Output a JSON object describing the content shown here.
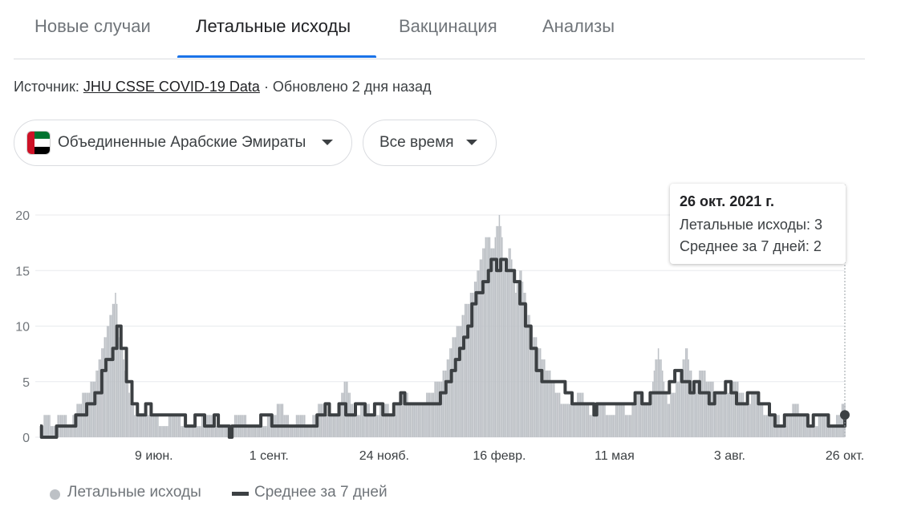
{
  "tabs": [
    {
      "label": "Новые случаи",
      "active": false
    },
    {
      "label": "Летальные исходы",
      "active": true
    },
    {
      "label": "Вакцинация",
      "active": false
    },
    {
      "label": "Анализы",
      "active": false
    }
  ],
  "source": {
    "prefix": "Источник:",
    "link": "JHU CSSE COVID-19 Data",
    "updated": "· Обновлено 2 дня назад"
  },
  "filters": {
    "country": "Объединенные Арабские Эмираты",
    "period": "Все время",
    "country_flag_icon": "uae-flag-icon",
    "dropdown_icon": "caret-down-icon"
  },
  "tooltip": {
    "date": "26 окт. 2021 г.",
    "deaths_label": "Летальные исходы:",
    "deaths_value": "3",
    "avg_label": "Среднее за 7 дней:",
    "avg_value": "2"
  },
  "legend": {
    "bars": "Летальные исходы",
    "line": "Среднее за 7 дней"
  },
  "colors": {
    "bars": "#bdc1c6",
    "line": "#3c4043",
    "grid": "#e8eaed",
    "active_tab": "#1a73e8"
  },
  "chart_data": {
    "type": "bar",
    "title": "",
    "xlabel": "",
    "ylabel": "",
    "ylim": [
      0,
      20
    ],
    "yticks": [
      0,
      5,
      10,
      15,
      20
    ],
    "grid": true,
    "legend_position": "bottom-left",
    "x_range": [
      "2020-03-18",
      "2021-10-26"
    ],
    "x_tick_labels": [
      {
        "label": "9 июн.",
        "date": "2020-06-09"
      },
      {
        "label": "1 сент.",
        "date": "2020-09-01"
      },
      {
        "label": "24 нояб.",
        "date": "2020-11-24"
      },
      {
        "label": "16 февр.",
        "date": "2021-02-16"
      },
      {
        "label": "11 мая",
        "date": "2021-05-11"
      },
      {
        "label": "3 авг.",
        "date": "2021-08-03"
      },
      {
        "label": "26 окт.",
        "date": "2021-10-26"
      }
    ],
    "series": [
      {
        "name": "Летальные исходы",
        "kind": "bar",
        "color": "#bdc1c6",
        "points": [
          [
            "2020-03-18",
            0
          ],
          [
            "2020-03-22",
            2
          ],
          [
            "2020-03-28",
            1
          ],
          [
            "2020-04-03",
            2
          ],
          [
            "2020-04-09",
            1
          ],
          [
            "2020-04-15",
            3
          ],
          [
            "2020-04-21",
            4
          ],
          [
            "2020-04-26",
            5
          ],
          [
            "2020-05-01",
            7
          ],
          [
            "2020-05-05",
            9
          ],
          [
            "2020-05-09",
            11
          ],
          [
            "2020-05-12",
            13
          ],
          [
            "2020-05-15",
            9
          ],
          [
            "2020-05-19",
            6
          ],
          [
            "2020-05-23",
            3
          ],
          [
            "2020-05-28",
            2
          ],
          [
            "2020-06-03",
            2
          ],
          [
            "2020-06-09",
            2
          ],
          [
            "2020-06-16",
            1
          ],
          [
            "2020-06-24",
            2
          ],
          [
            "2020-07-02",
            1
          ],
          [
            "2020-07-10",
            1
          ],
          [
            "2020-07-18",
            2
          ],
          [
            "2020-07-26",
            1
          ],
          [
            "2020-08-03",
            1
          ],
          [
            "2020-08-11",
            2
          ],
          [
            "2020-08-19",
            1
          ],
          [
            "2020-08-27",
            1
          ],
          [
            "2020-09-04",
            2
          ],
          [
            "2020-09-10",
            3
          ],
          [
            "2020-09-17",
            1
          ],
          [
            "2020-09-24",
            2
          ],
          [
            "2020-10-01",
            1
          ],
          [
            "2020-10-08",
            3
          ],
          [
            "2020-10-14",
            2
          ],
          [
            "2020-10-21",
            2
          ],
          [
            "2020-10-27",
            5
          ],
          [
            "2020-11-03",
            2
          ],
          [
            "2020-11-10",
            3
          ],
          [
            "2020-11-17",
            2
          ],
          [
            "2020-11-24",
            3
          ],
          [
            "2020-12-01",
            2
          ],
          [
            "2020-12-08",
            4
          ],
          [
            "2020-12-15",
            3
          ],
          [
            "2020-12-21",
            3
          ],
          [
            "2020-12-28",
            4
          ],
          [
            "2021-01-03",
            5
          ],
          [
            "2021-01-08",
            6
          ],
          [
            "2021-01-13",
            9
          ],
          [
            "2021-01-18",
            10
          ],
          [
            "2021-01-23",
            12
          ],
          [
            "2021-01-28",
            13
          ],
          [
            "2021-02-02",
            16
          ],
          [
            "2021-02-07",
            18
          ],
          [
            "2021-02-12",
            17
          ],
          [
            "2021-02-16",
            20
          ],
          [
            "2021-02-20",
            15
          ],
          [
            "2021-02-24",
            17
          ],
          [
            "2021-02-28",
            13
          ],
          [
            "2021-03-04",
            15
          ],
          [
            "2021-03-09",
            11
          ],
          [
            "2021-03-14",
            9
          ],
          [
            "2021-03-20",
            7
          ],
          [
            "2021-03-27",
            5
          ],
          [
            "2021-04-03",
            3
          ],
          [
            "2021-04-10",
            3
          ],
          [
            "2021-04-17",
            4
          ],
          [
            "2021-04-24",
            2
          ],
          [
            "2021-05-01",
            3
          ],
          [
            "2021-05-08",
            2
          ],
          [
            "2021-05-15",
            3
          ],
          [
            "2021-05-22",
            2
          ],
          [
            "2021-05-29",
            4
          ],
          [
            "2021-06-05",
            3
          ],
          [
            "2021-06-12",
            8
          ],
          [
            "2021-06-19",
            3
          ],
          [
            "2021-06-26",
            5
          ],
          [
            "2021-07-03",
            8
          ],
          [
            "2021-07-08",
            4
          ],
          [
            "2021-07-13",
            6
          ],
          [
            "2021-07-19",
            5
          ],
          [
            "2021-07-25",
            4
          ],
          [
            "2021-08-01",
            4
          ],
          [
            "2021-08-08",
            5
          ],
          [
            "2021-08-15",
            3
          ],
          [
            "2021-08-22",
            4
          ],
          [
            "2021-08-29",
            2
          ],
          [
            "2021-09-05",
            2
          ],
          [
            "2021-09-12",
            1
          ],
          [
            "2021-09-19",
            3
          ],
          [
            "2021-09-26",
            2
          ],
          [
            "2021-10-03",
            1
          ],
          [
            "2021-10-10",
            2
          ],
          [
            "2021-10-17",
            1
          ],
          [
            "2021-10-22",
            2
          ],
          [
            "2021-10-26",
            3
          ]
        ]
      },
      {
        "name": "Среднее за 7 дней",
        "kind": "line",
        "color": "#3c4043",
        "points": [
          [
            "2020-03-18",
            1
          ],
          [
            "2020-03-19",
            0
          ],
          [
            "2020-03-29",
            0
          ],
          [
            "2020-03-30",
            1
          ],
          [
            "2020-04-12",
            1
          ],
          [
            "2020-04-13",
            2
          ],
          [
            "2020-04-20",
            2
          ],
          [
            "2020-04-21",
            3
          ],
          [
            "2020-04-27",
            4
          ],
          [
            "2020-05-02",
            6
          ],
          [
            "2020-05-05",
            7
          ],
          [
            "2020-05-10",
            8
          ],
          [
            "2020-05-13",
            10
          ],
          [
            "2020-05-16",
            8
          ],
          [
            "2020-05-20",
            5
          ],
          [
            "2020-05-24",
            3
          ],
          [
            "2020-05-28",
            2
          ],
          [
            "2020-06-03",
            3
          ],
          [
            "2020-06-07",
            2
          ],
          [
            "2020-07-01",
            2
          ],
          [
            "2020-07-02",
            1
          ],
          [
            "2020-07-09",
            2
          ],
          [
            "2020-07-16",
            1
          ],
          [
            "2020-07-23",
            2
          ],
          [
            "2020-07-26",
            1
          ],
          [
            "2020-08-02",
            1
          ],
          [
            "2020-08-03",
            0
          ],
          [
            "2020-08-05",
            1
          ],
          [
            "2020-08-25",
            1
          ],
          [
            "2020-08-26",
            2
          ],
          [
            "2020-09-02",
            2
          ],
          [
            "2020-09-03",
            1
          ],
          [
            "2020-10-05",
            1
          ],
          [
            "2020-10-06",
            2
          ],
          [
            "2020-10-12",
            3
          ],
          [
            "2020-10-15",
            2
          ],
          [
            "2020-10-22",
            3
          ],
          [
            "2020-10-27",
            2
          ],
          [
            "2020-11-03",
            3
          ],
          [
            "2020-11-10",
            2
          ],
          [
            "2020-11-17",
            3
          ],
          [
            "2020-11-23",
            2
          ],
          [
            "2020-12-01",
            3
          ],
          [
            "2020-12-06",
            4
          ],
          [
            "2020-12-09",
            3
          ],
          [
            "2021-01-02",
            3
          ],
          [
            "2021-01-04",
            4
          ],
          [
            "2021-01-08",
            5
          ],
          [
            "2021-01-12",
            6
          ],
          [
            "2021-01-15",
            7
          ],
          [
            "2021-01-18",
            8
          ],
          [
            "2021-01-21",
            9
          ],
          [
            "2021-01-24",
            10
          ],
          [
            "2021-01-27",
            12
          ],
          [
            "2021-01-30",
            13
          ],
          [
            "2021-02-04",
            14
          ],
          [
            "2021-02-08",
            15
          ],
          [
            "2021-02-10",
            16
          ],
          [
            "2021-02-14",
            15
          ],
          [
            "2021-02-17",
            16
          ],
          [
            "2021-02-21",
            15
          ],
          [
            "2021-02-27",
            14
          ],
          [
            "2021-03-03",
            12
          ],
          [
            "2021-03-07",
            10
          ],
          [
            "2021-03-11",
            8
          ],
          [
            "2021-03-15",
            6
          ],
          [
            "2021-03-19",
            5
          ],
          [
            "2021-04-02",
            5
          ],
          [
            "2021-04-05",
            4
          ],
          [
            "2021-04-10",
            3
          ],
          [
            "2021-04-24",
            3
          ],
          [
            "2021-04-26",
            2
          ],
          [
            "2021-04-28",
            3
          ],
          [
            "2021-05-23",
            3
          ],
          [
            "2021-05-26",
            4
          ],
          [
            "2021-05-31",
            3
          ],
          [
            "2021-06-06",
            4
          ],
          [
            "2021-06-17",
            4
          ],
          [
            "2021-06-20",
            5
          ],
          [
            "2021-06-24",
            6
          ],
          [
            "2021-06-29",
            5
          ],
          [
            "2021-07-05",
            4
          ],
          [
            "2021-07-08",
            5
          ],
          [
            "2021-07-12",
            4
          ],
          [
            "2021-07-19",
            3
          ],
          [
            "2021-07-23",
            4
          ],
          [
            "2021-07-28",
            4
          ],
          [
            "2021-07-31",
            5
          ],
          [
            "2021-08-04",
            4
          ],
          [
            "2021-08-08",
            3
          ],
          [
            "2021-08-16",
            4
          ],
          [
            "2021-08-24",
            3
          ],
          [
            "2021-09-01",
            2
          ],
          [
            "2021-09-05",
            1
          ],
          [
            "2021-09-12",
            2
          ],
          [
            "2021-09-24",
            2
          ],
          [
            "2021-09-29",
            1
          ],
          [
            "2021-10-03",
            2
          ],
          [
            "2021-10-13",
            2
          ],
          [
            "2021-10-14",
            1
          ],
          [
            "2021-10-24",
            1
          ],
          [
            "2021-10-26",
            2
          ]
        ]
      }
    ]
  }
}
